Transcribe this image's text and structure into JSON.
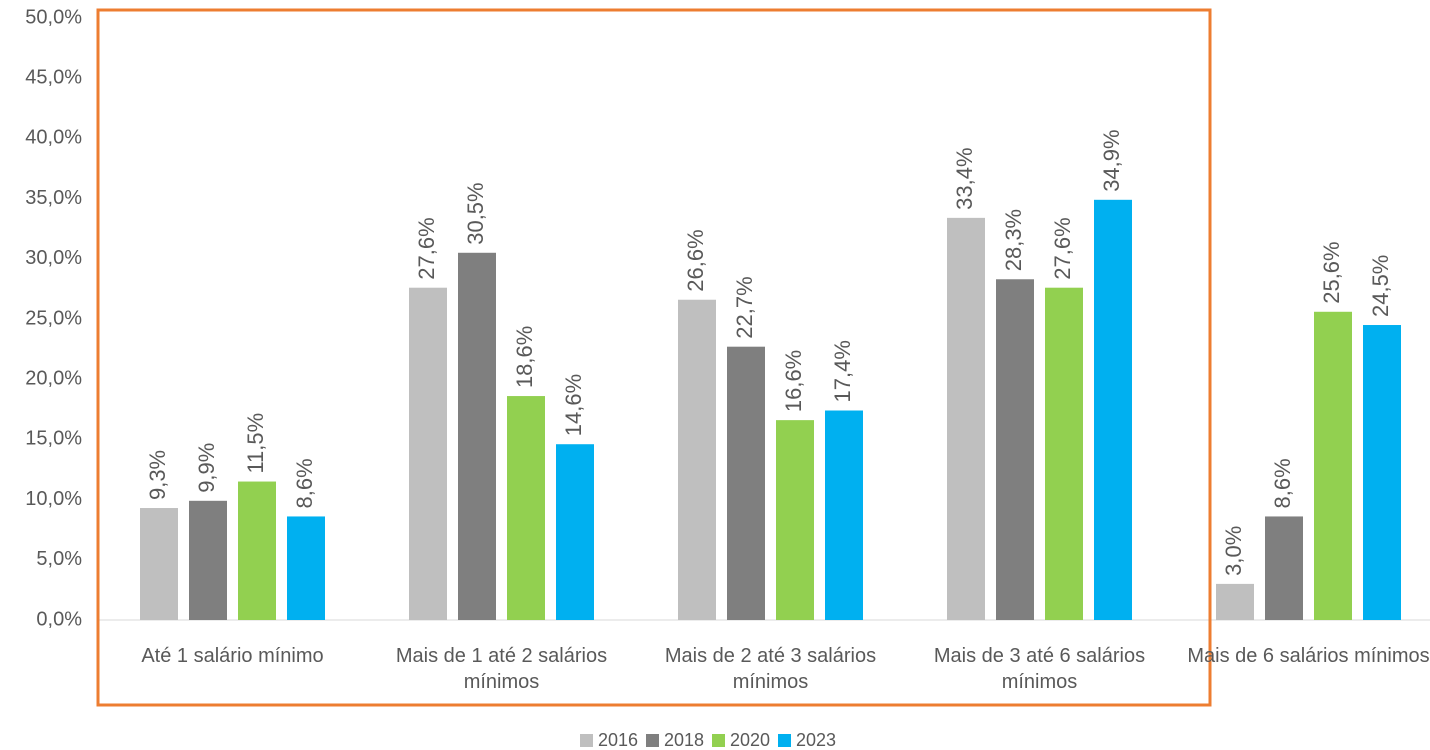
{
  "chart_data": {
    "type": "bar",
    "categories": [
      "Até 1 salário mínimo",
      "Mais de 1 até 2 salários mínimos",
      "Mais de 2 até 3 salários mínimos",
      "Mais de 3 até 6 salários mínimos",
      "Mais de 6 salários mínimos"
    ],
    "series": [
      {
        "name": "2016",
        "color": "#bfbfbf",
        "values": [
          9.3,
          27.6,
          26.6,
          33.4,
          3.0
        ],
        "value_labels": [
          "9,3%",
          "27,6%",
          "26,6%",
          "33,4%",
          "3,0%"
        ]
      },
      {
        "name": "2018",
        "color": "#7f7f7f",
        "values": [
          9.9,
          30.5,
          22.7,
          28.3,
          8.6
        ],
        "value_labels": [
          "9,9%",
          "30,5%",
          "22,7%",
          "28,3%",
          "8,6%"
        ]
      },
      {
        "name": "2020",
        "color": "#92d050",
        "values": [
          11.5,
          18.6,
          16.6,
          27.6,
          25.6
        ],
        "value_labels": [
          "11,5%",
          "18,6%",
          "16,6%",
          "27,6%",
          "25,6%"
        ]
      },
      {
        "name": "2023",
        "color": "#00b0f0",
        "values": [
          8.6,
          14.6,
          17.4,
          34.9,
          24.5
        ],
        "value_labels": [
          "8,6%",
          "14,6%",
          "17,4%",
          "34,9%",
          "24,5%"
        ]
      }
    ],
    "ylim": [
      0,
      50
    ],
    "yticks": [
      {
        "value": 0,
        "label": "0,0%"
      },
      {
        "value": 5,
        "label": "5,0%"
      },
      {
        "value": 10,
        "label": "10,0%"
      },
      {
        "value": 15,
        "label": "15,0%"
      },
      {
        "value": 20,
        "label": "20,0%"
      },
      {
        "value": 25,
        "label": "25,0%"
      },
      {
        "value": 30,
        "label": "30,0%"
      },
      {
        "value": 35,
        "label": "35,0%"
      },
      {
        "value": 40,
        "label": "40,0%"
      },
      {
        "value": 45,
        "label": "45,0%"
      },
      {
        "value": 50,
        "label": "50,0%"
      }
    ],
    "grid": false,
    "legend": "bottom"
  }
}
